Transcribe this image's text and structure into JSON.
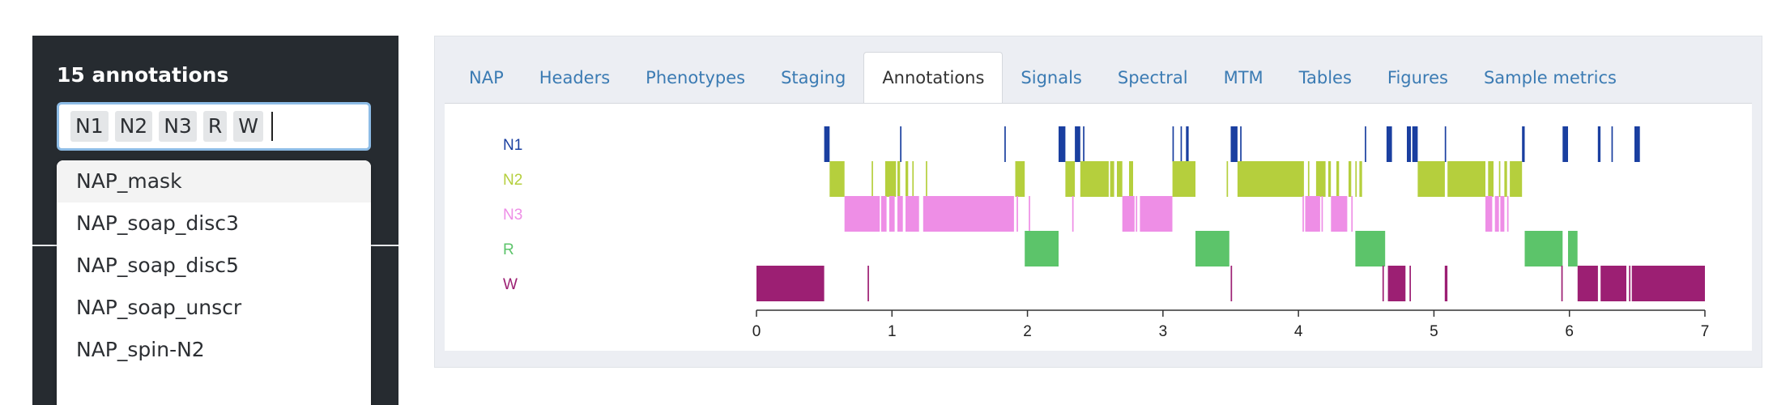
{
  "sidebar": {
    "title": "15 annotations",
    "selected_tags": [
      "N1",
      "N2",
      "N3",
      "R",
      "W"
    ],
    "options": [
      "NAP_mask",
      "NAP_soap_disc3",
      "NAP_soap_disc5",
      "NAP_soap_unscr",
      "NAP_spin-N2"
    ],
    "highlighted_option": "NAP_mask"
  },
  "tabs": [
    {
      "label": "NAP",
      "active": false
    },
    {
      "label": "Headers",
      "active": false
    },
    {
      "label": "Phenotypes",
      "active": false
    },
    {
      "label": "Staging",
      "active": false
    },
    {
      "label": "Annotations",
      "active": true
    },
    {
      "label": "Signals",
      "active": false
    },
    {
      "label": "Spectral",
      "active": false
    },
    {
      "label": "MTM",
      "active": false
    },
    {
      "label": "Tables",
      "active": false
    },
    {
      "label": "Figures",
      "active": false
    },
    {
      "label": "Sample metrics",
      "active": false
    }
  ],
  "colors": {
    "sidebar_bg": "#262b30",
    "accent_link": "#3b7bb3",
    "N1": "#1a3fa0",
    "N2": "#b5cf3d",
    "N3": "#ee8ee6",
    "R": "#5cc46a",
    "W": "#9c1f73"
  },
  "chart_data": {
    "type": "timeline",
    "categories": [
      "N1",
      "N2",
      "N3",
      "R",
      "W"
    ],
    "xlim": [
      0,
      7
    ],
    "xticks": [
      0,
      1,
      2,
      3,
      4,
      5,
      6,
      7
    ],
    "series": [
      {
        "name": "N1",
        "intervals": [
          [
            0.5,
            0.54
          ],
          [
            1.06,
            1.07
          ],
          [
            1.83,
            1.84
          ],
          [
            2.23,
            2.28
          ],
          [
            2.35,
            2.39
          ],
          [
            2.41,
            2.42
          ],
          [
            3.07,
            3.08
          ],
          [
            3.13,
            3.14
          ],
          [
            3.17,
            3.19
          ],
          [
            3.5,
            3.55
          ],
          [
            3.57,
            3.58
          ],
          [
            4.49,
            4.5
          ],
          [
            4.65,
            4.69
          ],
          [
            4.8,
            4.83
          ],
          [
            4.84,
            4.88
          ],
          [
            5.08,
            5.09
          ],
          [
            5.65,
            5.67
          ],
          [
            5.95,
            5.99
          ],
          [
            6.21,
            6.23
          ],
          [
            6.31,
            6.32
          ],
          [
            6.48,
            6.52
          ]
        ]
      },
      {
        "name": "N2",
        "intervals": [
          [
            0.54,
            0.65
          ],
          [
            0.85,
            0.86
          ],
          [
            0.95,
            1.03
          ],
          [
            1.04,
            1.06
          ],
          [
            1.1,
            1.12
          ],
          [
            1.15,
            1.16
          ],
          [
            1.25,
            1.26
          ],
          [
            1.91,
            1.98
          ],
          [
            2.28,
            2.35
          ],
          [
            2.39,
            2.6
          ],
          [
            2.61,
            2.64
          ],
          [
            2.66,
            2.7
          ],
          [
            2.75,
            2.78
          ],
          [
            3.07,
            3.24
          ],
          [
            3.47,
            3.48
          ],
          [
            3.55,
            4.04
          ],
          [
            4.07,
            4.08
          ],
          [
            4.13,
            4.2
          ],
          [
            4.22,
            4.24
          ],
          [
            4.28,
            4.3
          ],
          [
            4.37,
            4.39
          ],
          [
            4.42,
            4.43
          ],
          [
            4.45,
            4.47
          ],
          [
            4.88,
            5.08
          ],
          [
            5.1,
            5.38
          ],
          [
            5.4,
            5.44
          ],
          [
            5.48,
            5.49
          ],
          [
            5.52,
            5.54
          ],
          [
            5.56,
            5.65
          ]
        ]
      },
      {
        "name": "N3",
        "intervals": [
          [
            0.65,
            0.91
          ],
          [
            0.92,
            0.96
          ],
          [
            0.98,
            1.02
          ],
          [
            1.04,
            1.08
          ],
          [
            1.1,
            1.2
          ],
          [
            1.23,
            1.9
          ],
          [
            1.92,
            1.93
          ],
          [
            2.01,
            2.02
          ],
          [
            2.33,
            2.34
          ],
          [
            2.7,
            2.79
          ],
          [
            2.8,
            2.81
          ],
          [
            2.83,
            3.07
          ],
          [
            4.03,
            4.04
          ],
          [
            4.05,
            4.16
          ],
          [
            4.17,
            4.18
          ],
          [
            4.24,
            4.36
          ],
          [
            4.39,
            4.4
          ],
          [
            5.38,
            5.43
          ],
          [
            5.45,
            5.48
          ],
          [
            5.49,
            5.52
          ],
          [
            5.54,
            5.55
          ]
        ]
      },
      {
        "name": "R",
        "intervals": [
          [
            1.98,
            2.23
          ],
          [
            3.24,
            3.49
          ],
          [
            4.42,
            4.64
          ],
          [
            5.67,
            5.95
          ],
          [
            5.99,
            6.06
          ]
        ]
      },
      {
        "name": "W",
        "intervals": [
          [
            0,
            0.5
          ],
          [
            0.82,
            0.83
          ],
          [
            3.5,
            3.51
          ],
          [
            4.62,
            4.63
          ],
          [
            4.66,
            4.79
          ],
          [
            4.82,
            4.83
          ],
          [
            5.08,
            5.1
          ],
          [
            5.94,
            5.95
          ],
          [
            6.06,
            6.21
          ],
          [
            6.23,
            6.42
          ],
          [
            6.44,
            6.45
          ],
          [
            6.46,
            7.0
          ]
        ]
      }
    ]
  }
}
